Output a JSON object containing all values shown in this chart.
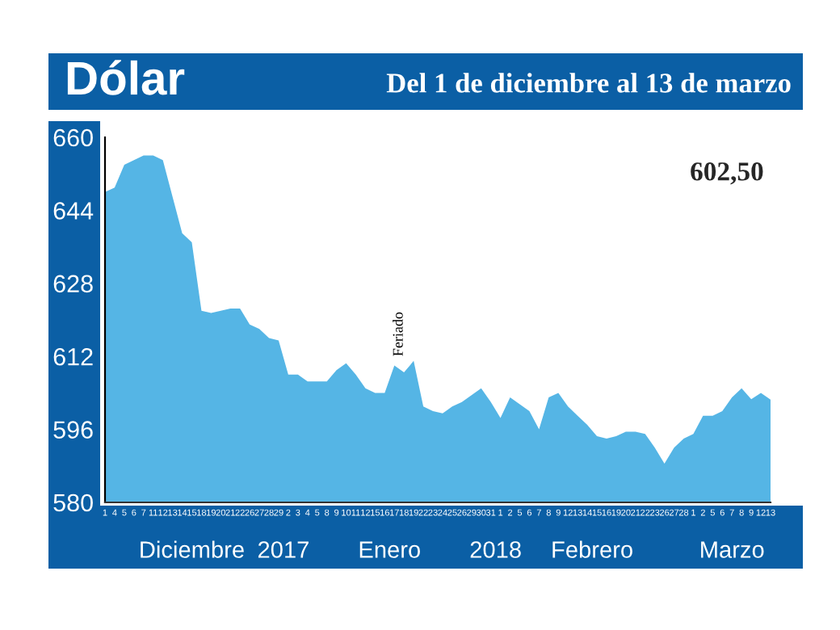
{
  "chart_data": {
    "type": "area",
    "title": "Dólar",
    "subtitle": "Del 1 de diciembre al 13 de marzo",
    "categories": [
      "1",
      "4",
      "5",
      "6",
      "7",
      "11",
      "12",
      "13",
      "14",
      "15",
      "18",
      "19",
      "20",
      "21",
      "22",
      "26",
      "27",
      "28",
      "29",
      "2",
      "3",
      "4",
      "5",
      "8",
      "9",
      "10",
      "11",
      "12",
      "15",
      "16",
      "17",
      "18",
      "19",
      "22",
      "23",
      "24",
      "25",
      "26",
      "29",
      "30",
      "31",
      "1",
      "2",
      "5",
      "6",
      "7",
      "8",
      "9",
      "12",
      "13",
      "14",
      "15",
      "16",
      "19",
      "20",
      "21",
      "22",
      "23",
      "26",
      "27",
      "28",
      "1",
      "2",
      "5",
      "6",
      "7",
      "8",
      "9",
      "12",
      "13"
    ],
    "values": [
      648,
      649,
      654,
      655,
      656,
      656,
      655,
      647,
      639,
      637,
      622,
      621.5,
      622,
      622.5,
      622.5,
      619,
      618,
      616,
      615.5,
      608,
      608,
      606.5,
      606.5,
      606.5,
      609,
      610.5,
      608,
      605,
      604,
      604,
      610,
      608.5,
      611,
      601,
      600,
      599.5,
      601,
      602,
      603.5,
      605,
      602,
      598.5,
      603,
      601.5,
      600,
      596,
      603,
      604,
      601,
      599,
      597,
      594.5,
      594,
      594.5,
      595.5,
      595.5,
      595,
      592,
      588.5,
      592,
      594,
      595,
      599,
      599,
      600,
      603,
      605,
      602.6,
      604,
      602.5
    ],
    "color": "#55b5e5",
    "ylim": [
      580,
      660
    ],
    "yticks": [
      580,
      596,
      612,
      628,
      644,
      660
    ],
    "grid": false,
    "annotations": [
      "Diciembre",
      "2017",
      "Enero",
      "2018",
      "Febrero",
      "Marzo",
      {
        "text": "Feriado",
        "x": "16",
        "y": 604
      },
      "602,50"
    ]
  }
}
